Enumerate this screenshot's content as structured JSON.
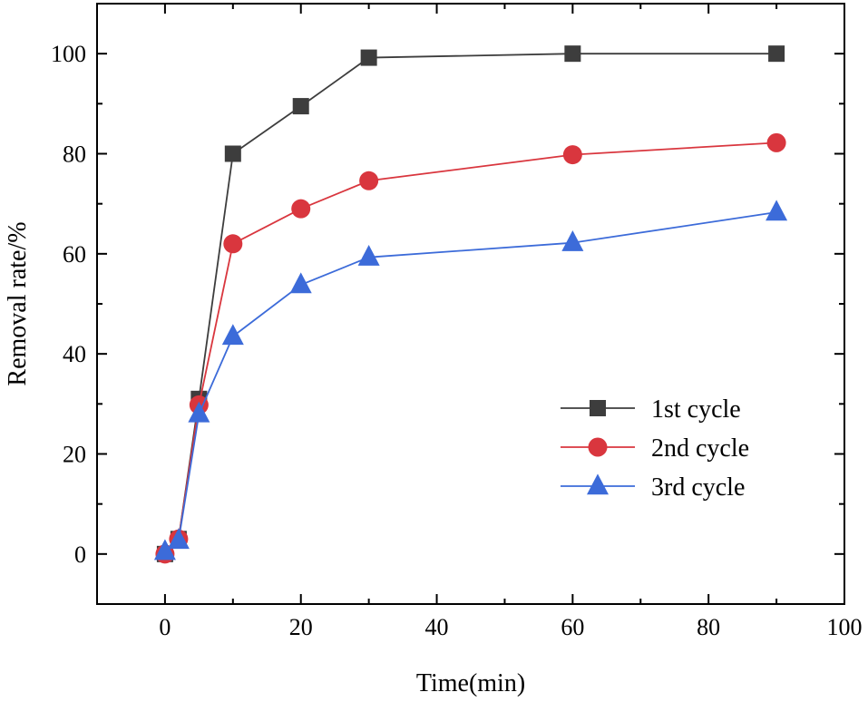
{
  "chart_data": {
    "type": "line",
    "title": "",
    "xlabel": "Time(min)",
    "ylabel": "Removal rate/%",
    "xlim": [
      -10,
      100
    ],
    "ylim": [
      -10,
      110
    ],
    "xticks": [
      0,
      20,
      40,
      60,
      80,
      100
    ],
    "yticks": [
      0,
      20,
      40,
      60,
      80,
      100
    ],
    "legend_position": "lower-right",
    "grid": false,
    "series": [
      {
        "name": "1st cycle",
        "color": "#3d3d3d",
        "marker": "square",
        "x": [
          0,
          2,
          5,
          10,
          20,
          30,
          60,
          90
        ],
        "y": [
          0,
          3,
          31,
          80,
          89.5,
          99.2,
          100,
          100
        ]
      },
      {
        "name": "2nd cycle",
        "color": "#d9363e",
        "marker": "circle",
        "x": [
          0,
          2,
          5,
          10,
          20,
          30,
          60,
          90
        ],
        "y": [
          0,
          3,
          29.8,
          62,
          69,
          74.6,
          79.8,
          82.2
        ]
      },
      {
        "name": "3rd cycle",
        "color": "#3c6bd9",
        "marker": "triangle",
        "x": [
          0,
          2,
          5,
          10,
          20,
          30,
          60,
          90
        ],
        "y": [
          0.5,
          2.7,
          28,
          43.5,
          53.8,
          59.3,
          62.2,
          68.3
        ]
      }
    ]
  }
}
